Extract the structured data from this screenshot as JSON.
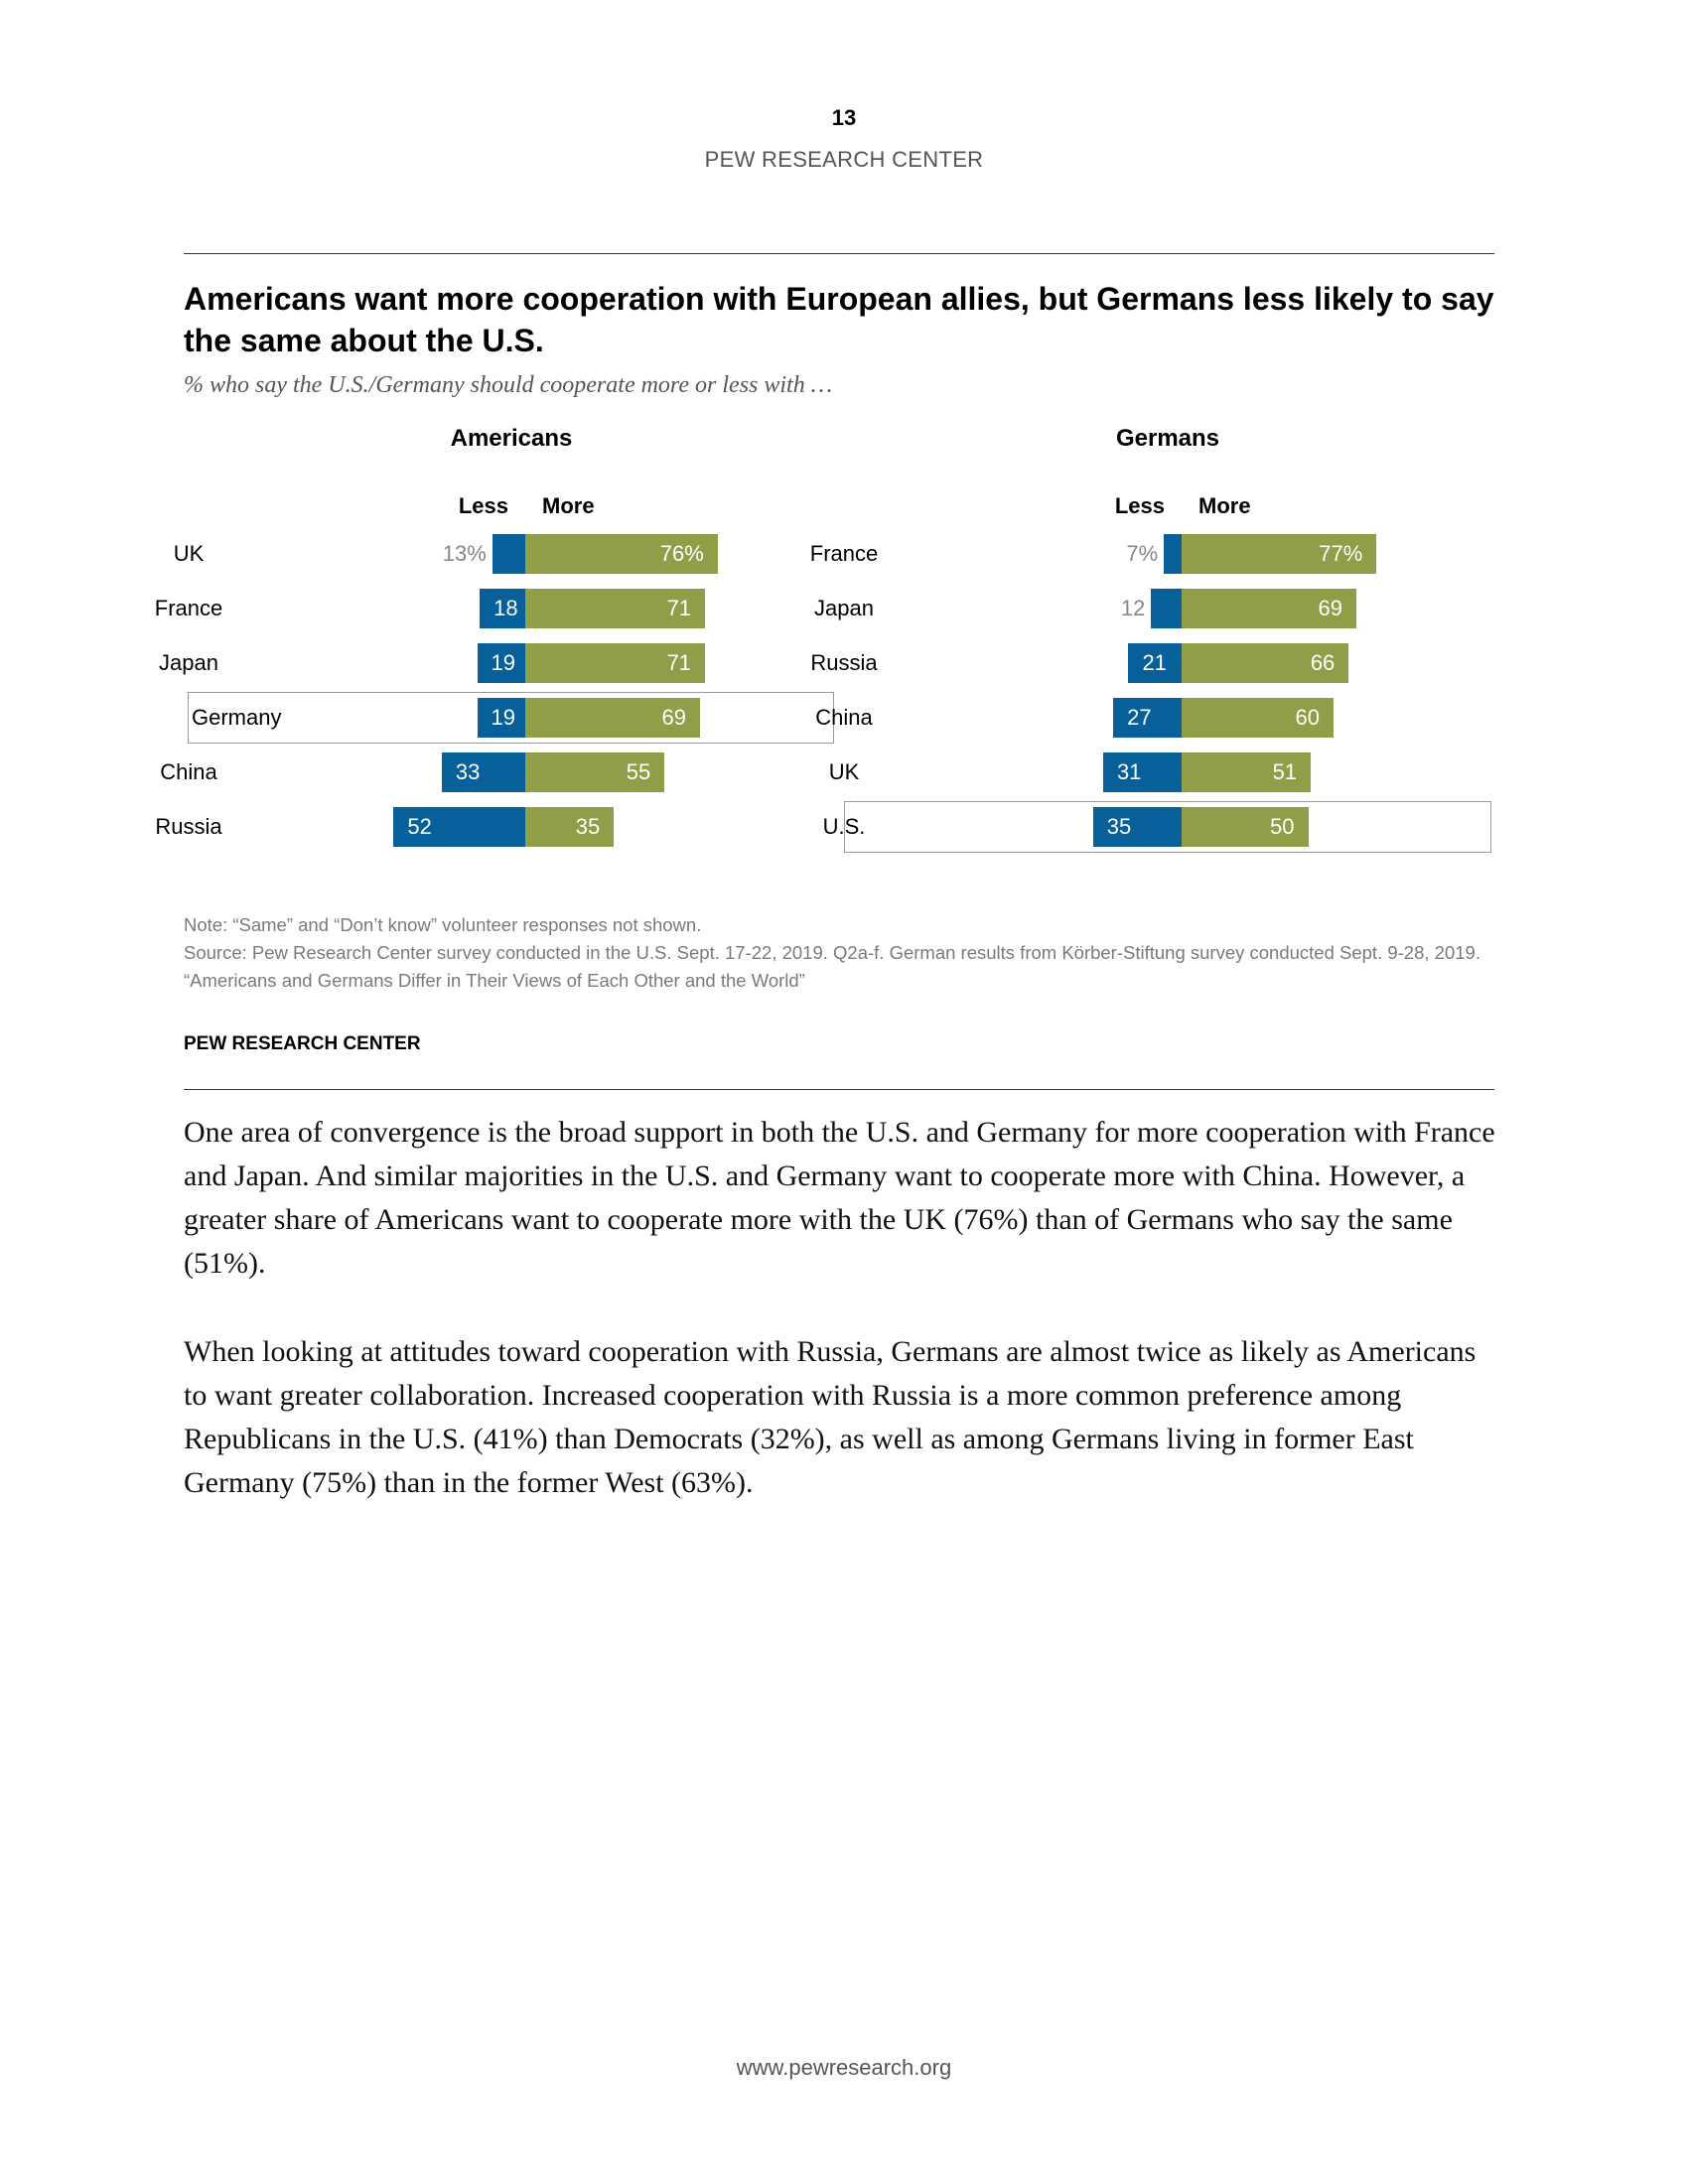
{
  "header": {
    "page_number": "13",
    "running_head": "PEW RESEARCH CENTER"
  },
  "figure": {
    "title": "Americans want more cooperation with European allies, but Germans less likely to say the same about the U.S.",
    "subtitle": "% who say the U.S./Germany should cooperate more or less with …",
    "less_label": "Less",
    "more_label": "More",
    "note": "Note: “Same” and “Don’t know” volunteer responses not shown.",
    "source": "Source: Pew Research Center survey conducted in the U.S. Sept. 17-22, 2019. Q2a-f. German results from Körber-Stiftung survey conducted Sept. 9-28, 2019.",
    "report": "“Americans and Germans Differ in Their Views of Each Other and the World”",
    "credit": "PEW RESEARCH CENTER"
  },
  "colors": {
    "less": "#07609a",
    "more": "#919e48",
    "highlight_border": "#999999"
  },
  "chart_data": [
    {
      "type": "bar",
      "title": "Americans",
      "categories": [
        "UK",
        "France",
        "Japan",
        "Germany",
        "China",
        "Russia"
      ],
      "series": [
        {
          "name": "Less",
          "values": [
            13,
            18,
            19,
            19,
            33,
            52
          ]
        },
        {
          "name": "More",
          "values": [
            76,
            71,
            71,
            69,
            55,
            35
          ]
        }
      ],
      "value_labels": {
        "Less": [
          "13%",
          "18",
          "19",
          "19",
          "33",
          "52"
        ],
        "More": [
          "76%",
          "71",
          "71",
          "69",
          "55",
          "35"
        ]
      },
      "highlighted": "Germany"
    },
    {
      "type": "bar",
      "title": "Germans",
      "categories": [
        "France",
        "Japan",
        "Russia",
        "China",
        "UK",
        "U.S."
      ],
      "series": [
        {
          "name": "Less",
          "values": [
            7,
            12,
            21,
            27,
            31,
            35
          ]
        },
        {
          "name": "More",
          "values": [
            77,
            69,
            66,
            60,
            51,
            50
          ]
        }
      ],
      "value_labels": {
        "Less": [
          "7%",
          "12",
          "21",
          "27",
          "31",
          "35"
        ],
        "More": [
          "77%",
          "69",
          "66",
          "60",
          "51",
          "50"
        ]
      },
      "highlighted": "U.S."
    }
  ],
  "body": {
    "paragraph_1": "One area of convergence is the broad support in both the U.S. and Germany for more cooperation with France and Japan. And similar majorities in the U.S. and Germany want to cooperate more with China. However, a greater share of Americans want to cooperate more with the UK (76%) than of Germans who say the same (51%).",
    "paragraph_2": "When looking at attitudes toward cooperation with Russia, Germans are almost twice as likely as Americans to want greater collaboration. Increased cooperation with Russia is a more common preference among Republicans in the U.S. (41%) than Democrats (32%), as well as among Germans living in former East Germany (75%) than in the former West (63%)."
  },
  "footer": {
    "url": "www.pewresearch.org"
  }
}
